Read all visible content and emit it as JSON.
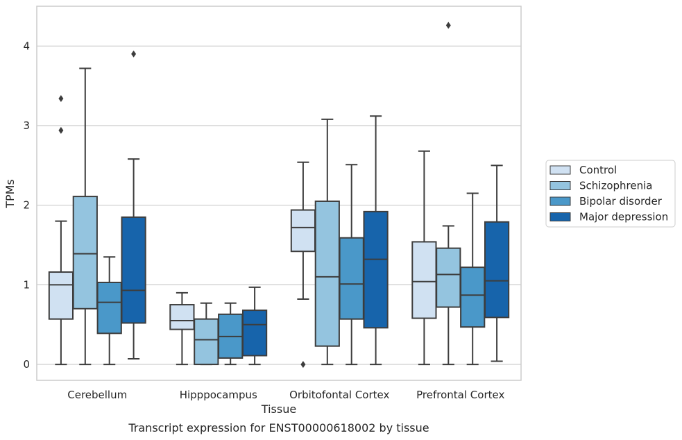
{
  "chart_data": {
    "type": "box",
    "caption": "Transcript expression for ENST00000618002 by tissue",
    "xlabel": "Tissue",
    "ylabel": "TPMs",
    "ylim": [
      -0.2,
      4.5
    ],
    "yticks": [
      0,
      1,
      2,
      3,
      4
    ],
    "grid": "horizontal",
    "legend_position": "right",
    "categories": [
      "Cerebellum",
      "Hipppocampus",
      "Orbitofontal Cortex",
      "Prefrontal Cortex"
    ],
    "series": [
      {
        "name": "Control",
        "color": "#d0e1f2",
        "boxes": [
          {
            "whislo": 0.0,
            "q1": 0.57,
            "med": 1.0,
            "q3": 1.16,
            "whishi": 1.8,
            "fliers": [
              2.94,
              3.34
            ]
          },
          {
            "whislo": 0.0,
            "q1": 0.44,
            "med": 0.55,
            "q3": 0.75,
            "whishi": 0.9,
            "fliers": []
          },
          {
            "whislo": 0.82,
            "q1": 1.42,
            "med": 1.72,
            "q3": 1.94,
            "whishi": 2.54,
            "fliers": [
              0.0
            ]
          },
          {
            "whislo": 0.0,
            "q1": 0.58,
            "med": 1.04,
            "q3": 1.54,
            "whishi": 2.68,
            "fliers": []
          }
        ]
      },
      {
        "name": "Schizophrenia",
        "color": "#94c4df",
        "boxes": [
          {
            "whislo": 0.0,
            "q1": 0.7,
            "med": 1.39,
            "q3": 2.11,
            "whishi": 3.72,
            "fliers": []
          },
          {
            "whislo": 0.0,
            "q1": 0.0,
            "med": 0.31,
            "q3": 0.57,
            "whishi": 0.77,
            "fliers": []
          },
          {
            "whislo": 0.0,
            "q1": 0.23,
            "med": 1.1,
            "q3": 2.05,
            "whishi": 3.08,
            "fliers": []
          },
          {
            "whislo": 0.0,
            "q1": 0.72,
            "med": 1.13,
            "q3": 1.46,
            "whishi": 1.74,
            "fliers": [
              4.26
            ]
          }
        ]
      },
      {
        "name": "Bipolar disorder",
        "color": "#4a98c9",
        "boxes": [
          {
            "whislo": 0.0,
            "q1": 0.39,
            "med": 0.78,
            "q3": 1.03,
            "whishi": 1.35,
            "fliers": []
          },
          {
            "whislo": 0.0,
            "q1": 0.08,
            "med": 0.35,
            "q3": 0.63,
            "whishi": 0.77,
            "fliers": []
          },
          {
            "whislo": 0.0,
            "q1": 0.57,
            "med": 1.01,
            "q3": 1.59,
            "whishi": 2.51,
            "fliers": []
          },
          {
            "whislo": 0.0,
            "q1": 0.47,
            "med": 0.87,
            "q3": 1.22,
            "whishi": 2.15,
            "fliers": []
          }
        ]
      },
      {
        "name": "Major depression",
        "color": "#1764ab",
        "boxes": [
          {
            "whislo": 0.07,
            "q1": 0.52,
            "med": 0.93,
            "q3": 1.85,
            "whishi": 2.58,
            "fliers": [
              3.9
            ]
          },
          {
            "whislo": 0.0,
            "q1": 0.11,
            "med": 0.5,
            "q3": 0.68,
            "whishi": 0.97,
            "fliers": []
          },
          {
            "whislo": 0.0,
            "q1": 0.46,
            "med": 1.32,
            "q3": 1.92,
            "whishi": 3.12,
            "fliers": []
          },
          {
            "whislo": 0.04,
            "q1": 0.59,
            "med": 1.05,
            "q3": 1.79,
            "whishi": 2.5,
            "fliers": []
          }
        ]
      }
    ]
  }
}
